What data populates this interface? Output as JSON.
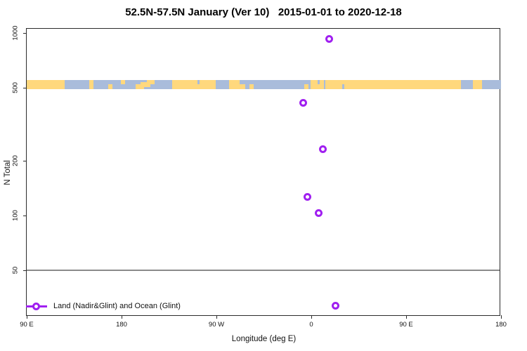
{
  "title": "52.5N-57.5N January (Ver 10)   2015-01-01 to 2020-12-18",
  "chart_data": {
    "type": "scatter",
    "title": "52.5N-57.5N January (Ver 10)   2015-01-01 to 2020-12-18",
    "xlabel": "Longitude (deg E)",
    "ylabel": "N Total",
    "y_scale": "log10",
    "ylim": [
      28,
      1050
    ],
    "x_plot_deg_range": [
      90,
      540
    ],
    "x_ticks": [
      {
        "plot_deg": 90,
        "label": "90 E"
      },
      {
        "plot_deg": 180,
        "label": "180"
      },
      {
        "plot_deg": 270,
        "label": "90 W"
      },
      {
        "plot_deg": 360,
        "label": "0"
      },
      {
        "plot_deg": 450,
        "label": "90 E"
      },
      {
        "plot_deg": 540,
        "label": "180"
      }
    ],
    "y_ticks": [
      {
        "value": 1000,
        "label": "1000"
      },
      {
        "value": 500,
        "label": "500"
      },
      {
        "value": 200,
        "label": "200"
      },
      {
        "value": 100,
        "label": "100"
      },
      {
        "value": 50,
        "label": "50"
      }
    ],
    "reference_line_n": 50,
    "points": [
      {
        "lon_deg_e": 17,
        "x_plot_deg": 377,
        "n": 925
      },
      {
        "lon_deg_e": -8,
        "x_plot_deg": 352,
        "n": 415
      },
      {
        "lon_deg_e": 11,
        "x_plot_deg": 371,
        "n": 230
      },
      {
        "lon_deg_e": -4,
        "x_plot_deg": 356,
        "n": 126
      },
      {
        "lon_deg_e": 7,
        "x_plot_deg": 367,
        "n": 103
      },
      {
        "lon_deg_e": 23,
        "x_plot_deg": 383,
        "n": 32
      }
    ],
    "legend": {
      "label": "Land (Nadir&Glint) and Ocean (Glint)",
      "marker_color": "#a020f0"
    },
    "map_band": {
      "n_range": [
        490,
        552
      ],
      "ocean_color": "#a9bcdb",
      "land_color": "#ffd87d",
      "segments": [
        {
          "from": 90,
          "to": 126,
          "part": "full",
          "type": "land"
        },
        {
          "from": 149,
          "to": 153,
          "part": "full",
          "type": "land"
        },
        {
          "from": 167,
          "to": 171,
          "part": "bottom",
          "type": "land"
        },
        {
          "from": 179,
          "to": 183,
          "part": "top",
          "type": "land"
        },
        {
          "from": 193,
          "to": 201,
          "part": "bottom",
          "type": "land"
        },
        {
          "from": 198,
          "to": 207,
          "part": "mid",
          "type": "land"
        },
        {
          "from": 204,
          "to": 211,
          "part": "top",
          "type": "land"
        },
        {
          "from": 228,
          "to": 269,
          "part": "full",
          "type": "land"
        },
        {
          "from": 252,
          "to": 254,
          "part": "top",
          "type": "ocean"
        },
        {
          "from": 282,
          "to": 292,
          "part": "full",
          "type": "land"
        },
        {
          "from": 292,
          "to": 297,
          "part": "bottom",
          "type": "land"
        },
        {
          "from": 301,
          "to": 305,
          "part": "bottom",
          "type": "land"
        },
        {
          "from": 353,
          "to": 357,
          "part": "bottom",
          "type": "land"
        },
        {
          "from": 359,
          "to": 372,
          "part": "full",
          "type": "land"
        },
        {
          "from": 366,
          "to": 368,
          "part": "top",
          "type": "ocean"
        },
        {
          "from": 373,
          "to": 502,
          "part": "full",
          "type": "land"
        },
        {
          "from": 389,
          "to": 391,
          "part": "bottom",
          "type": "ocean"
        },
        {
          "from": 513,
          "to": 522,
          "part": "full",
          "type": "land"
        }
      ]
    },
    "colors": {
      "marker": "#a020f0",
      "land": "#ffd87d",
      "ocean": "#a9bcdb",
      "reference_line": "#8a8a8a",
      "axis": "#2b2b2b"
    }
  }
}
